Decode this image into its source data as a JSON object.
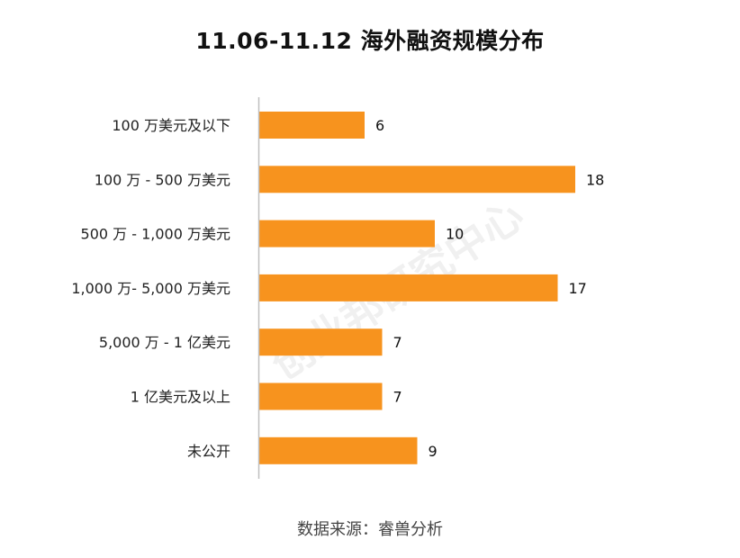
{
  "watermark_text": "创业邦研究中心",
  "source": "数据来源：睿兽分析",
  "chart_data": {
    "type": "bar",
    "orientation": "horizontal",
    "title": "11.06-11.12 海外融资规模分布",
    "categories": [
      "100 万美元及以下",
      "100 万 - 500 万美元",
      "500 万 - 1,000 万美元",
      "1,000 万- 5,000 万美元",
      "5,000 万 - 1 亿美元",
      "1 亿美元及以上",
      "未公开"
    ],
    "values": [
      6,
      18,
      10,
      17,
      7,
      7,
      9
    ],
    "xlim": [
      0,
      20
    ],
    "grid": false,
    "legend": "none",
    "bar_color": "#F7931E",
    "axis_color": "#bfbfbf"
  }
}
